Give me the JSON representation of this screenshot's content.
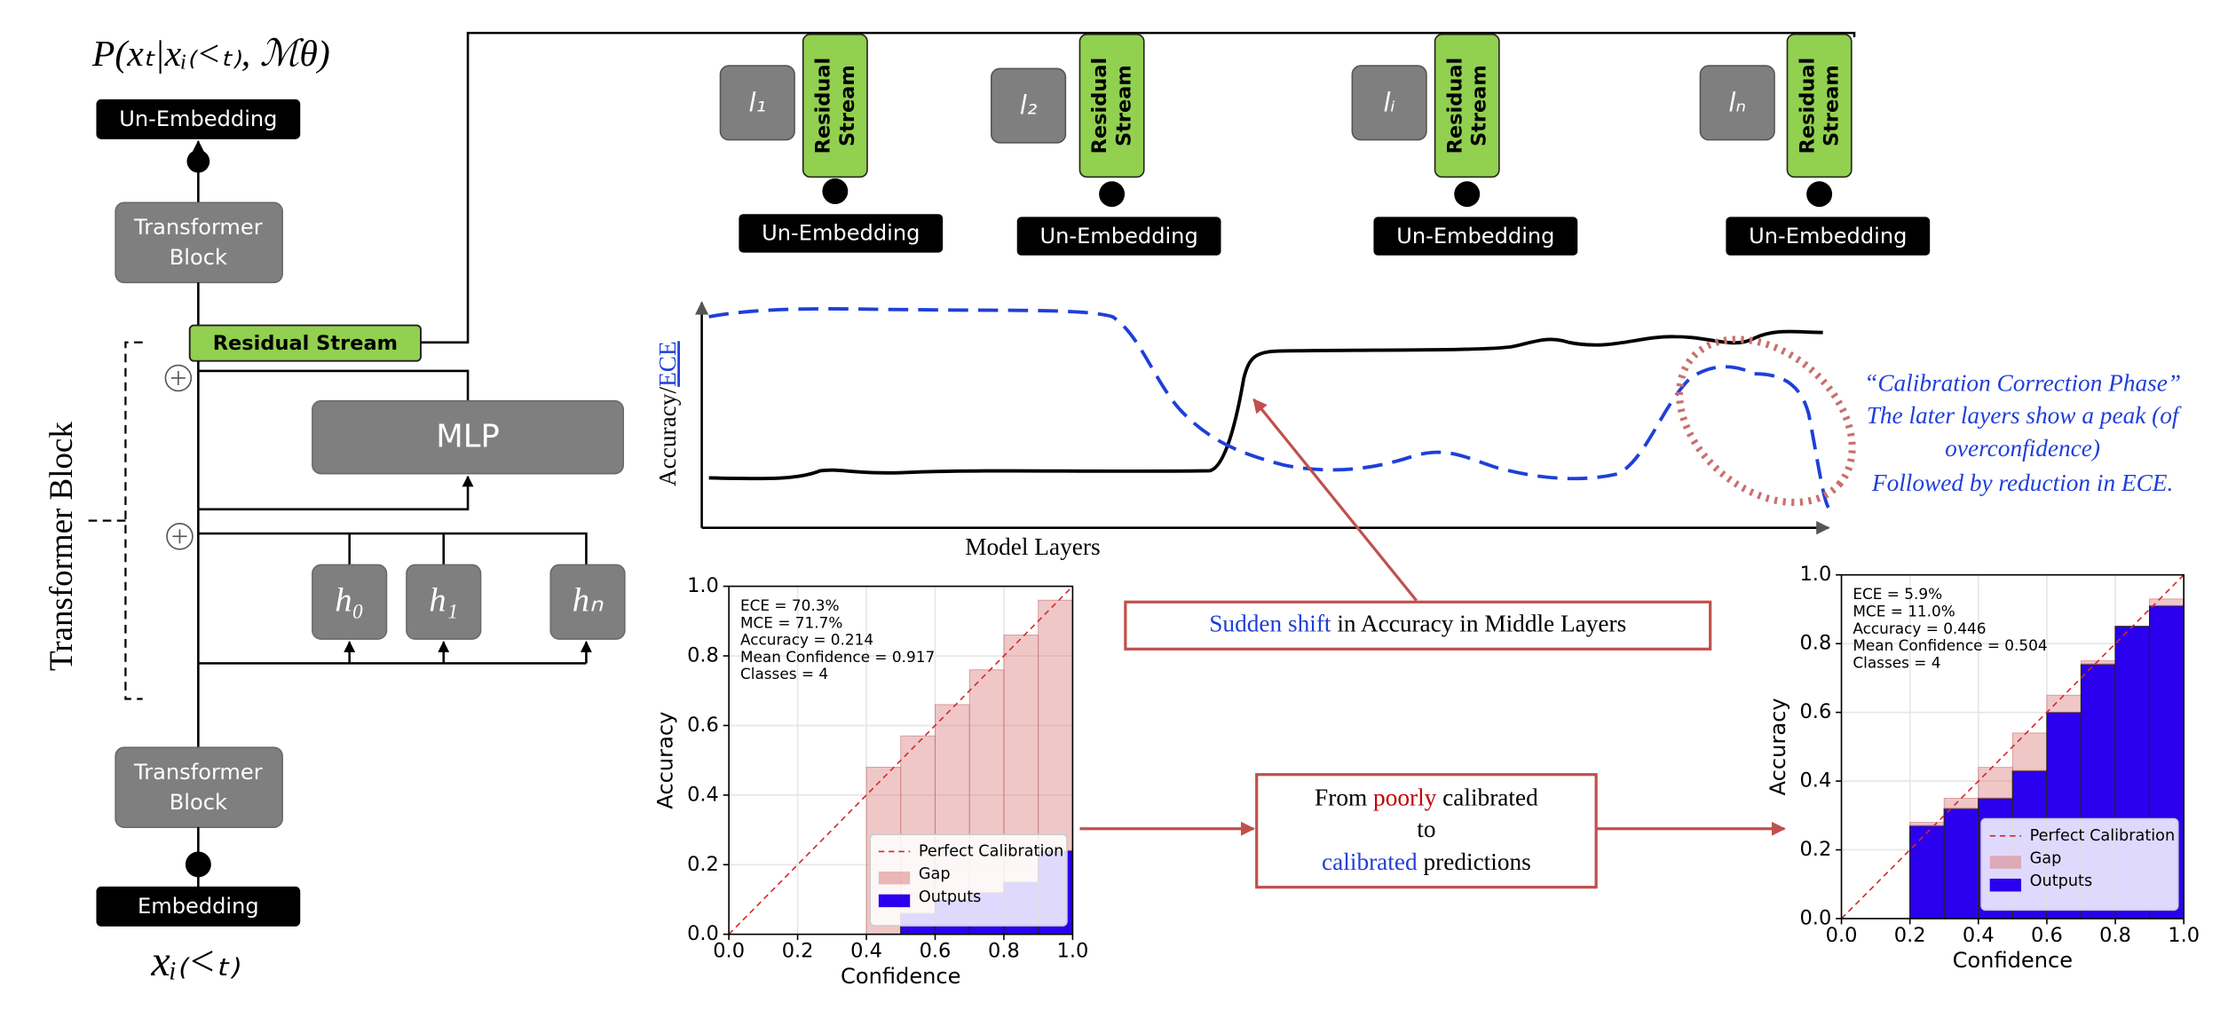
{
  "transformer": {
    "output_prob": "P(xₜ|xᵢ₍<ₜ₎, ℳθ)",
    "un_embedding": "Un-Embedding",
    "block_top": [
      "Transformer",
      "Block"
    ],
    "residual_stream": "Residual Stream",
    "mlp": "MLP",
    "heads": [
      "h₀",
      "h₁",
      "hₙ"
    ],
    "block_bottom": [
      "Transformer",
      "Block"
    ],
    "embedding": "Embedding",
    "input": "xᵢ₍<ₜ₎",
    "bracket_label": "Transformer Block"
  },
  "lens": [
    {
      "layer": "l₁",
      "stream": [
        "Residual",
        "Stream"
      ],
      "un_embedding": "Un-Embedding"
    },
    {
      "layer": "l₂",
      "stream": [
        "Residual",
        "Stream"
      ],
      "un_embedding": "Un-Embedding"
    },
    {
      "layer": "lᵢ",
      "stream": [
        "Residual",
        "Stream"
      ],
      "un_embedding": "Un-Embedding"
    },
    {
      "layer": "lₙ",
      "stream": [
        "Residual",
        "Stream"
      ],
      "un_embedding": "Un-Embedding"
    }
  ],
  "layer_plot": {
    "y_label": [
      "Accuracy/",
      "ECE"
    ],
    "x_label": "Model Layers",
    "annotation": [
      "“Calibration Correction Phase”",
      "The later layers show a peak (of",
      "overconfidence)",
      "Followed by reduction in ECE."
    ],
    "callout": [
      "Sudden shift",
      " in Accuracy in Middle Layers"
    ]
  },
  "transition": {
    "line1": [
      "From ",
      "poorly",
      " calibrated"
    ],
    "line2": "to",
    "line3": [
      "calibrated",
      " predictions"
    ]
  },
  "chart_data": [
    {
      "type": "reliability",
      "x_label": "Confidence",
      "y_label": "Accuracy",
      "stats": [
        "ECE = 70.3%",
        "MCE = 71.7%",
        "Accuracy = 0.214",
        "Mean Confidence = 0.917",
        "Classes = 4"
      ],
      "bins": [
        0.4,
        0.5,
        0.6,
        0.7,
        0.8,
        0.9,
        1.0
      ],
      "accuracy": [
        0.0,
        0.06,
        0.1,
        0.12,
        0.15,
        0.24
      ],
      "confidence": [
        0.48,
        0.57,
        0.66,
        0.76,
        0.86,
        0.96
      ],
      "legend": [
        "Perfect Calibration",
        "Gap",
        "Outputs"
      ],
      "xlim": [
        0,
        1
      ],
      "ylim": [
        0,
        1
      ],
      "xticks": [
        {
          "value": 0,
          "label": "0.0"
        },
        {
          "value": 0.2,
          "label": "0.2"
        },
        {
          "value": 0.4,
          "label": "0.4"
        },
        {
          "value": 0.6,
          "label": "0.6"
        },
        {
          "value": 0.8,
          "label": "0.8"
        },
        {
          "value": 1,
          "label": "1.0"
        }
      ],
      "yticks": [
        {
          "value": 0,
          "label": "0.0"
        },
        {
          "value": 0.2,
          "label": "0.2"
        },
        {
          "value": 0.4,
          "label": "0.4"
        },
        {
          "value": 0.6,
          "label": "0.6"
        },
        {
          "value": 0.8,
          "label": "0.8"
        },
        {
          "value": 1,
          "label": "1.0"
        }
      ],
      "grid": true
    },
    {
      "type": "reliability",
      "x_label": "Confidence",
      "y_label": "Accuracy",
      "stats": [
        "ECE = 5.9%",
        "MCE = 11.0%",
        "Accuracy = 0.446",
        "Mean Confidence = 0.504",
        "Classes = 4"
      ],
      "bins": [
        0.2,
        0.3,
        0.4,
        0.5,
        0.6,
        0.7,
        0.8,
        0.9,
        1.0
      ],
      "accuracy": [
        0.27,
        0.32,
        0.35,
        0.43,
        0.6,
        0.74,
        0.85,
        0.91
      ],
      "confidence": [
        0.28,
        0.35,
        0.44,
        0.54,
        0.65,
        0.75,
        0.85,
        0.93
      ],
      "legend": [
        "Perfect Calibration",
        "Gap",
        "Outputs"
      ],
      "xlim": [
        0,
        1
      ],
      "ylim": [
        0,
        1
      ],
      "xticks": [
        {
          "value": 0,
          "label": "0.0"
        },
        {
          "value": 0.2,
          "label": "0.2"
        },
        {
          "value": 0.4,
          "label": "0.4"
        },
        {
          "value": 0.6,
          "label": "0.6"
        },
        {
          "value": 0.8,
          "label": "0.8"
        },
        {
          "value": 1,
          "label": "1.0"
        }
      ],
      "yticks": [
        {
          "value": 0,
          "label": "0.0"
        },
        {
          "value": 0.2,
          "label": "0.2"
        },
        {
          "value": 0.4,
          "label": "0.4"
        },
        {
          "value": 0.6,
          "label": "0.6"
        },
        {
          "value": 0.8,
          "label": "0.8"
        },
        {
          "value": 1,
          "label": "1.0"
        }
      ],
      "grid": true
    }
  ]
}
